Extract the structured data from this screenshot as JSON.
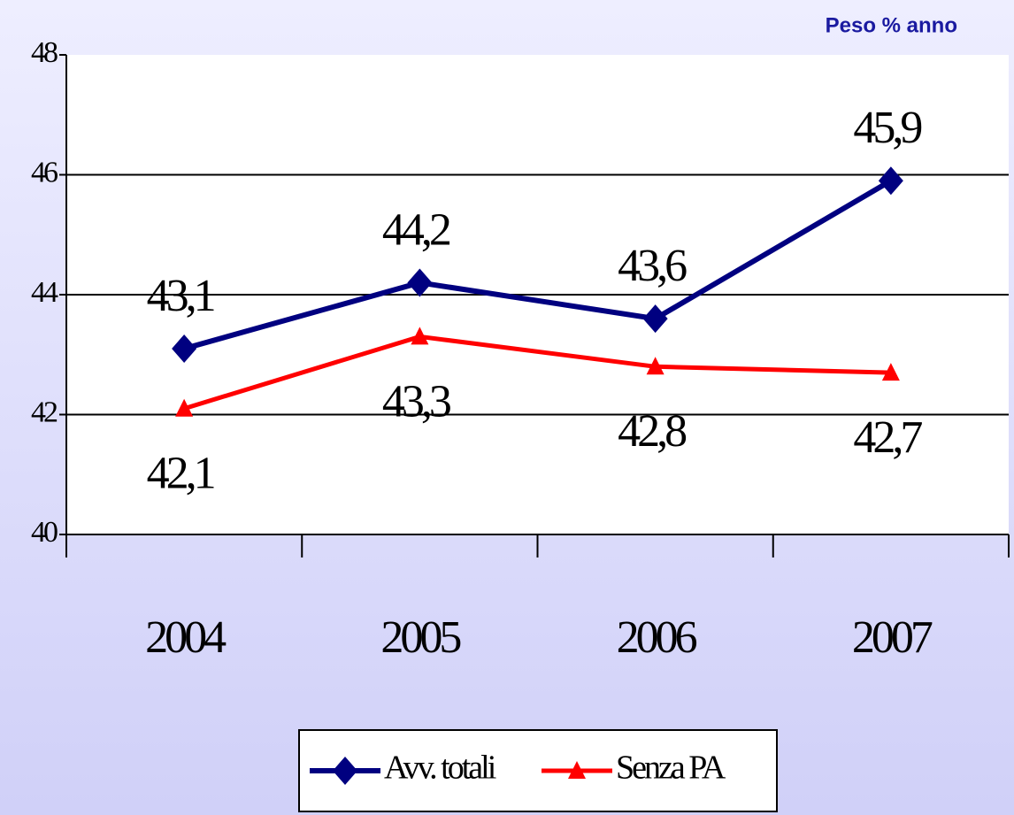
{
  "chart_data": {
    "type": "line",
    "subtitle": "Peso % anno",
    "categories": [
      "2004",
      "2005",
      "2006",
      "2007"
    ],
    "series": [
      {
        "name": "Avv. totali",
        "color": "#000080",
        "marker": "diamond",
        "values": [
          43.1,
          44.2,
          43.6,
          45.9
        ],
        "value_labels": [
          "43,1",
          "44,2",
          "43,6",
          "45,9"
        ]
      },
      {
        "name": "Senza PA",
        "color": "#ff0000",
        "marker": "triangle",
        "values": [
          42.1,
          43.3,
          42.8,
          42.7
        ],
        "value_labels": [
          "42,1",
          "43,3",
          "42,8",
          "42,7"
        ]
      }
    ],
    "ylim": [
      40,
      48
    ],
    "yticks": [
      40,
      42,
      44,
      46,
      48
    ],
    "grid": true,
    "legend": "bottom"
  }
}
